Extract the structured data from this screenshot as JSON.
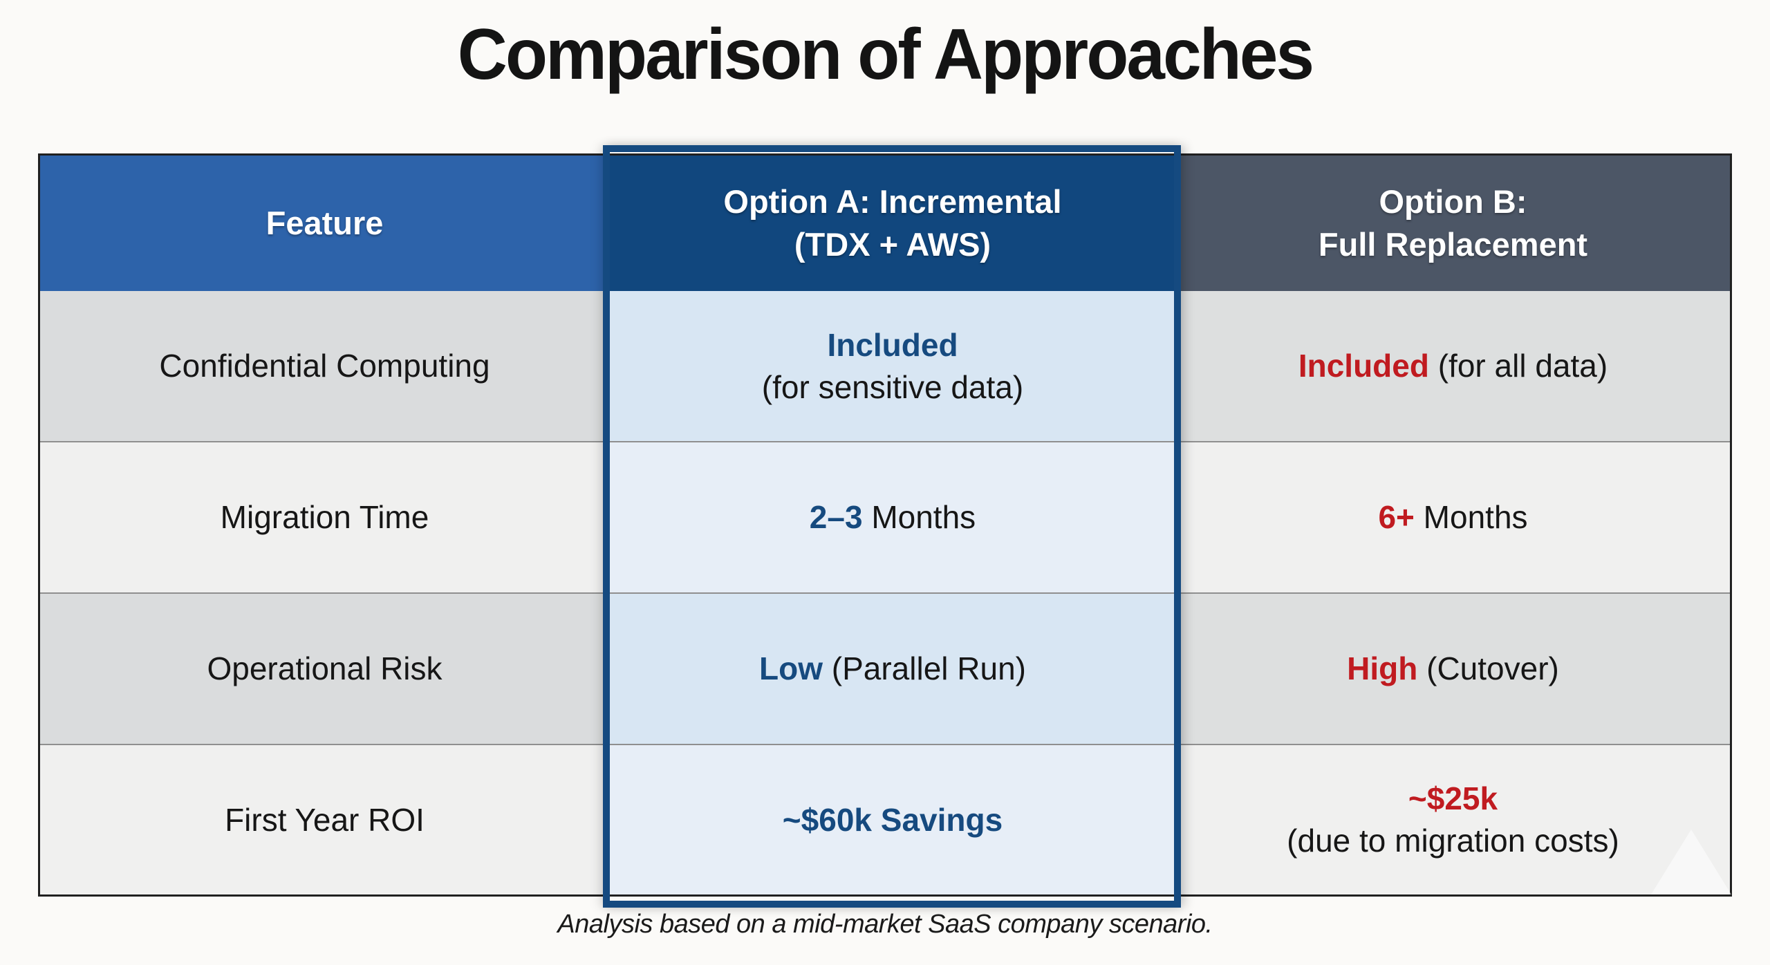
{
  "title": "Comparison of Approaches",
  "footnote": "Analysis based on a mid-market SaaS company scenario.",
  "colors": {
    "canvas_bg": "#fbfaf8",
    "header_feature_bg": "#2d63aa",
    "header_option_a_bg": "#11477e",
    "header_option_b_bg": "#4c5666",
    "accent_blue": "#164a7f",
    "accent_red": "#c01b20",
    "highlight_border": "#154a80",
    "feature_odd": "#dadcdd",
    "feature_even": "#f0f0ef",
    "option_a_odd": "#d8e6f3",
    "option_a_even": "#e7eef7",
    "option_b_odd": "#dddfdf",
    "option_b_even": "#f0f0ef"
  },
  "table": {
    "header": {
      "feature": "Feature",
      "option_a_line1": "Option A: Incremental",
      "option_a_line2": "(TDX + AWS)",
      "option_b_line1": "Option B:",
      "option_b_line2": "Full Replacement"
    },
    "rows": [
      {
        "feature": "Confidential Computing",
        "option_a": {
          "line1_accent": "Included",
          "line1_rest": "",
          "line2": "(for sensitive data)"
        },
        "option_b": {
          "line1_accent": "Included",
          "line1_rest": " (for all data)",
          "line2": ""
        }
      },
      {
        "feature": "Migration Time",
        "option_a": {
          "line1_accent": "2–3",
          "line1_rest": " Months",
          "line2": ""
        },
        "option_b": {
          "line1_accent": "6+",
          "line1_rest": " Months",
          "line2": ""
        }
      },
      {
        "feature": "Operational Risk",
        "option_a": {
          "line1_accent": "Low",
          "line1_rest": " (Parallel Run)",
          "line2": ""
        },
        "option_b": {
          "line1_accent": "High",
          "line1_rest": " (Cutover)",
          "line2": ""
        }
      },
      {
        "feature": "First Year ROI",
        "option_a": {
          "line1_accent": "~$60k Savings",
          "line1_rest": "",
          "line2": ""
        },
        "option_b": {
          "line1_accent": "~$25k",
          "line1_rest": "",
          "line2": "(due to migration costs)"
        }
      }
    ]
  }
}
